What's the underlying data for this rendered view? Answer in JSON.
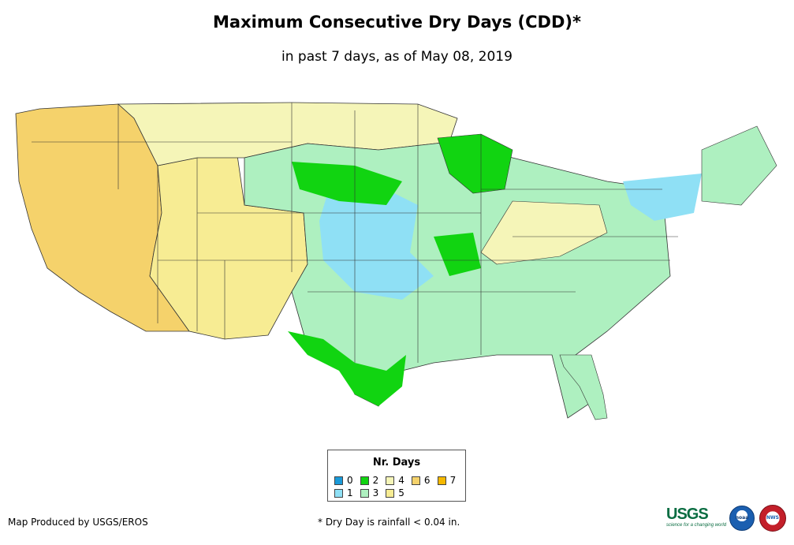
{
  "title": "Maximum Consecutive Dry Days (CDD)*",
  "subtitle": "in past 7 days, as of May 08, 2019",
  "legend": {
    "title": "Nr. Days",
    "items": [
      {
        "label": "0",
        "color": "#1a9ad9"
      },
      {
        "label": "2",
        "color": "#11d411"
      },
      {
        "label": "4",
        "color": "#f5f5b8"
      },
      {
        "label": "6",
        "color": "#f5d26b"
      },
      {
        "label": "7",
        "color": "#f5b800"
      },
      {
        "label": "1",
        "color": "#8fe0f5"
      },
      {
        "label": "3",
        "color": "#aef0c0"
      },
      {
        "label": "5",
        "color": "#f7ec93"
      }
    ]
  },
  "footer": {
    "credit": "Map Produced by USGS/EROS",
    "note": "* Dry Day is rainfall < 0.04 in."
  },
  "logos": {
    "usgs": "USGS",
    "usgs_tagline": "science for a changing world",
    "noaa": "noaa",
    "nws": "NWS"
  }
}
